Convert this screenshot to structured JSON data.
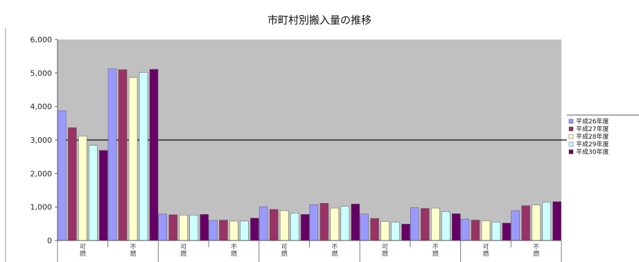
{
  "chart_data": {
    "type": "bar",
    "title": "市町村別搬入量の推移",
    "xlabel": "",
    "ylabel": "",
    "ylim": [
      0,
      6000
    ],
    "yticks": [
      "0",
      "1,000",
      "2,000",
      "3,000",
      "4,000",
      "5,000",
      "6,000"
    ],
    "reference_line": 3000,
    "grid": false,
    "legend_position": "right",
    "categories": [
      "可燃",
      "不燃",
      "可燃",
      "不燃",
      "可燃",
      "不燃",
      "可燃",
      "不燃",
      "可燃",
      "不燃"
    ],
    "groups": [
      "",
      "",
      "",
      "",
      ""
    ],
    "series": [
      {
        "name": "平成26年度",
        "color": "#9999ff",
        "values": [
          3870,
          5130,
          790,
          600,
          1010,
          1070,
          790,
          980,
          640,
          890
        ]
      },
      {
        "name": "平成27年度",
        "color": "#993366",
        "values": [
          3370,
          5100,
          770,
          610,
          930,
          1110,
          660,
          960,
          610,
          1040
        ]
      },
      {
        "name": "平成28年度",
        "color": "#ffffcc",
        "values": [
          3120,
          4870,
          760,
          580,
          890,
          970,
          570,
          970,
          590,
          1060
        ]
      },
      {
        "name": "平成29年度",
        "color": "#ccffff",
        "values": [
          2840,
          5020,
          760,
          580,
          820,
          1020,
          550,
          860,
          550,
          1140
        ]
      },
      {
        "name": "平成30年度",
        "color": "#660066",
        "values": [
          2690,
          5110,
          780,
          670,
          780,
          1090,
          490,
          800,
          520,
          1160
        ]
      }
    ]
  }
}
